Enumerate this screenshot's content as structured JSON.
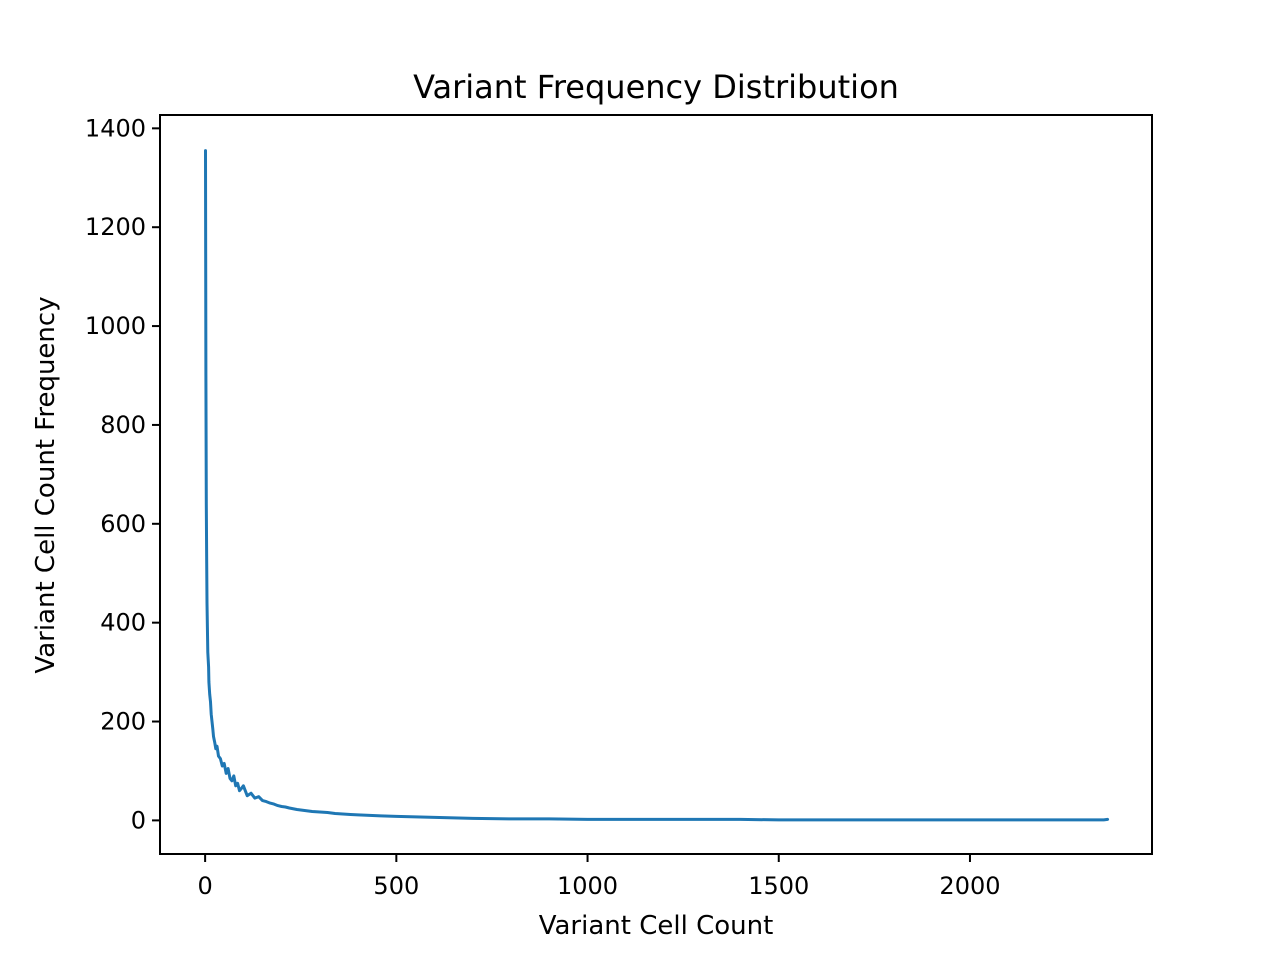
{
  "chart_data": {
    "type": "line",
    "title": "Variant Frequency Distribution",
    "xlabel": "Variant Cell Count",
    "ylabel": "Variant Cell Count Frequency",
    "xlim": [
      -118,
      2476
    ],
    "ylim": [
      -68,
      1427
    ],
    "xticks": [
      0,
      500,
      1000,
      1500,
      2000
    ],
    "yticks": [
      0,
      200,
      400,
      600,
      800,
      1000,
      1200,
      1400
    ],
    "grid": false,
    "legend": "none",
    "colors": {
      "series": "#1f77b4"
    },
    "series": [
      {
        "x": [
          1,
          2,
          3,
          4,
          5,
          6,
          7,
          8,
          9,
          10,
          12,
          14,
          16,
          18,
          20,
          22,
          25,
          28,
          31,
          35,
          40,
          45,
          50,
          55,
          60,
          65,
          70,
          75,
          80,
          85,
          90,
          95,
          100,
          110,
          120,
          130,
          140,
          150,
          160,
          170,
          180,
          190,
          200,
          210,
          220,
          240,
          260,
          280,
          300,
          320,
          340,
          360,
          380,
          400,
          430,
          460,
          500,
          550,
          600,
          650,
          700,
          800,
          900,
          1000,
          1100,
          1200,
          1300,
          1400,
          1500,
          1600,
          1700,
          1800,
          1900,
          2000,
          2100,
          2200,
          2300,
          2350,
          2360
        ],
        "y": [
          1355,
          900,
          640,
          520,
          440,
          390,
          340,
          325,
          310,
          280,
          255,
          240,
          215,
          200,
          185,
          170,
          158,
          145,
          150,
          130,
          125,
          110,
          115,
          95,
          105,
          85,
          80,
          90,
          70,
          75,
          60,
          65,
          70,
          50,
          55,
          45,
          48,
          40,
          38,
          35,
          33,
          30,
          28,
          27,
          25,
          22,
          20,
          18,
          17,
          16,
          14,
          13,
          12,
          11,
          10,
          9,
          8,
          7,
          6,
          5,
          4,
          3,
          3,
          2,
          2,
          2,
          2,
          2,
          1,
          1,
          1,
          1,
          1,
          1,
          1,
          1,
          1,
          1,
          2
        ]
      }
    ]
  }
}
